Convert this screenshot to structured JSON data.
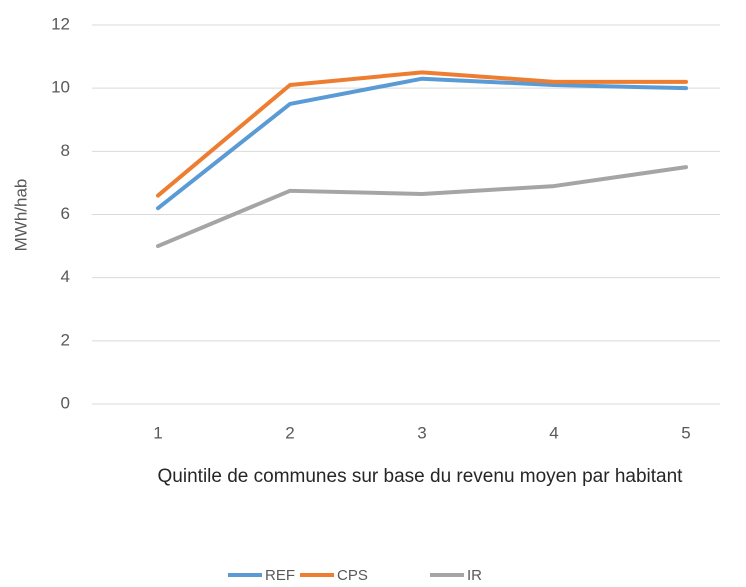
{
  "chart_data": {
    "type": "line",
    "y_label": "MWh/hab",
    "x_label": "Quintile de communes sur base du revenu moyen par habitant",
    "categories": [
      "1",
      "2",
      "3",
      "4",
      "5"
    ],
    "series": [
      {
        "name": "REF",
        "color": "#5b9bd5",
        "values": [
          6.2,
          9.5,
          10.3,
          10.1,
          10.0
        ]
      },
      {
        "name": "CPS",
        "color": "#ed7d31",
        "values": [
          6.6,
          10.1,
          10.5,
          10.2,
          10.2
        ]
      },
      {
        "name": "IR",
        "color": "#a5a5a5",
        "values": [
          5.0,
          6.75,
          6.65,
          6.9,
          7.5
        ]
      }
    ],
    "ylim": [
      0,
      12
    ],
    "yticks": [
      0,
      2,
      4,
      6,
      8,
      10,
      12
    ],
    "grid": true,
    "legend": "bottom"
  }
}
